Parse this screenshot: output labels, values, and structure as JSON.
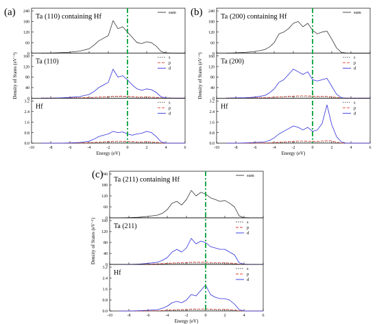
{
  "figure": {
    "panels": [
      {
        "letter": "(a)",
        "xlabel": "Energy (eV)",
        "ylabel": "Density of States (eV⁻¹)",
        "x_ticks": [
          "-10",
          "-8",
          "-6",
          "-4",
          "-2",
          "0",
          "2",
          "4",
          "6"
        ],
        "subplots": [
          {
            "title": "Ta (110) containing Hf",
            "legend": [
              "sum"
            ],
            "y_ticks": [
              "0",
              "60",
              "120",
              "180",
              "240"
            ]
          },
          {
            "title": "Ta (110)",
            "legend": [
              "s",
              "p",
              "d"
            ],
            "y_ticks": [
              "0",
              "40",
              "80",
              "120",
              "160"
            ]
          },
          {
            "title": "Hf",
            "legend": [
              "s",
              "p",
              "d"
            ],
            "y_ticks": [
              "0.0",
              "0.8",
              "1.6",
              "2.4",
              "3.2"
            ]
          }
        ]
      },
      {
        "letter": "(b)",
        "xlabel": "Energy (eV)",
        "ylabel": "Density of States (eV⁻¹)",
        "x_ticks": [
          "-10",
          "-8",
          "-6",
          "-4",
          "-2",
          "0",
          "2",
          "4",
          "6"
        ],
        "subplots": [
          {
            "title": "Ta (200) containing Hf",
            "legend": [
              "sum"
            ],
            "y_ticks": [
              "0",
              "60",
              "120",
              "180",
              "240"
            ]
          },
          {
            "title": "Ta (200)",
            "legend": [
              "s",
              "p",
              "d"
            ],
            "y_ticks": [
              "0",
              "40",
              "80",
              "120",
              "160"
            ]
          },
          {
            "title": "Hf",
            "legend": [
              "s",
              "p",
              "d"
            ],
            "y_ticks": [
              "0.0",
              "0.8",
              "1.6",
              "2.4",
              "3.2"
            ]
          }
        ]
      },
      {
        "letter": "(c)",
        "xlabel": "Energy (eV)",
        "ylabel": "Density of States (eV⁻¹)",
        "x_ticks": [
          "-10",
          "-8",
          "-6",
          "-4",
          "-2",
          "0",
          "2",
          "4",
          "6"
        ],
        "subplots": [
          {
            "title": "Ta (211) containing Hf",
            "legend": [
              "sum"
            ],
            "y_ticks": [
              "0",
              "60",
              "120",
              "180",
              "240"
            ]
          },
          {
            "title": "Ta (211)",
            "legend": [
              "s",
              "p",
              "d"
            ],
            "y_ticks": [
              "0",
              "40",
              "80",
              "120",
              "160"
            ]
          },
          {
            "title": "Hf",
            "legend": [
              "s",
              "p",
              "d"
            ],
            "y_ticks": [
              "0.0",
              "0.8",
              "1.6",
              "2.4",
              "3.2"
            ]
          }
        ]
      }
    ]
  },
  "colors": {
    "sum": "#333333",
    "s": "#444444",
    "p": "#e03a2a",
    "d": "#2b2bdc",
    "fermi": "#1aa84a"
  },
  "chart_data": [
    {
      "panel": "(a)",
      "type": "line",
      "xlim": [
        -10,
        6
      ],
      "fermi_level": 0,
      "x": [
        -9,
        -8,
        -7,
        -6,
        -5,
        -4.5,
        -4,
        -3.5,
        -3,
        -2.5,
        -2,
        -1.5,
        -1,
        -0.5,
        0,
        0.5,
        1,
        1.5,
        2,
        2.5,
        3,
        3.5,
        4,
        5,
        6
      ],
      "subplots": [
        {
          "title": "Ta (110) containing Hf",
          "ylim": [
            0,
            240
          ],
          "series": [
            {
              "name": "sum",
              "values": [
                0,
                1,
                3,
                6,
                12,
                18,
                25,
                45,
                70,
                85,
                100,
                185,
                140,
                150,
                120,
                90,
                60,
                55,
                65,
                60,
                40,
                10,
                2,
                0,
                0
              ]
            }
          ]
        },
        {
          "title": "Ta (110)",
          "ylim": [
            0,
            160
          ],
          "series": [
            {
              "name": "s",
              "values": [
                0,
                0,
                1,
                1,
                2,
                2,
                3,
                3,
                4,
                4,
                4,
                5,
                5,
                5,
                4,
                4,
                3,
                3,
                3,
                3,
                2,
                1,
                0,
                0,
                0
              ]
            },
            {
              "name": "p",
              "values": [
                0,
                0,
                1,
                1,
                1,
                2,
                2,
                3,
                4,
                5,
                6,
                7,
                8,
                8,
                7,
                6,
                5,
                5,
                5,
                4,
                3,
                1,
                0,
                0,
                0
              ]
            },
            {
              "name": "d",
              "values": [
                0,
                0,
                1,
                3,
                6,
                10,
                14,
                25,
                40,
                50,
                60,
                110,
                80,
                85,
                70,
                50,
                35,
                30,
                35,
                32,
                22,
                5,
                1,
                0,
                0
              ]
            }
          ]
        },
        {
          "title": "Hf",
          "ylim": [
            0,
            3.2
          ],
          "series": [
            {
              "name": "s",
              "values": [
                0,
                0,
                0,
                0,
                0.01,
                0.02,
                0.03,
                0.04,
                0.05,
                0.06,
                0.07,
                0.08,
                0.08,
                0.07,
                0.07,
                0.06,
                0.05,
                0.05,
                0.05,
                0.04,
                0.03,
                0.01,
                0,
                0,
                0
              ]
            },
            {
              "name": "p",
              "values": [
                0,
                0,
                0,
                0.01,
                0.02,
                0.03,
                0.04,
                0.06,
                0.08,
                0.1,
                0.12,
                0.14,
                0.15,
                0.14,
                0.13,
                0.12,
                0.1,
                0.1,
                0.12,
                0.1,
                0.07,
                0.02,
                0,
                0,
                0
              ]
            },
            {
              "name": "d",
              "values": [
                0,
                0,
                0,
                0.02,
                0.05,
                0.1,
                0.15,
                0.3,
                0.5,
                0.6,
                0.7,
                0.9,
                0.8,
                0.85,
                0.7,
                0.6,
                0.7,
                0.75,
                0.9,
                0.8,
                0.5,
                0.1,
                0,
                0,
                0
              ]
            }
          ]
        }
      ]
    },
    {
      "panel": "(b)",
      "type": "line",
      "xlim": [
        -10,
        6
      ],
      "fermi_level": 0,
      "x": [
        -9,
        -8,
        -7,
        -6,
        -5,
        -4.5,
        -4,
        -3.5,
        -3,
        -2.5,
        -2,
        -1.5,
        -1,
        -0.5,
        0,
        0.5,
        1,
        1.5,
        2,
        2.5,
        3,
        3.5,
        4,
        5,
        6
      ],
      "subplots": [
        {
          "title": "Ta (200) containing Hf",
          "ylim": [
            0,
            240
          ],
          "series": [
            {
              "name": "sum",
              "values": [
                0,
                2,
                5,
                10,
                20,
                35,
                60,
                110,
                120,
                140,
                170,
                180,
                150,
                170,
                130,
                110,
                120,
                125,
                80,
                30,
                5,
                1,
                0,
                0,
                0
              ]
            }
          ]
        },
        {
          "title": "Ta (200)",
          "ylim": [
            0,
            160
          ],
          "series": [
            {
              "name": "s",
              "values": [
                0,
                0,
                1,
                1,
                2,
                2,
                3,
                4,
                4,
                5,
                5,
                5,
                5,
                5,
                4,
                4,
                4,
                4,
                3,
                2,
                1,
                0,
                0,
                0,
                0
              ]
            },
            {
              "name": "p",
              "values": [
                0,
                0,
                1,
                1,
                2,
                3,
                4,
                5,
                6,
                7,
                8,
                9,
                9,
                9,
                8,
                7,
                7,
                7,
                5,
                3,
                1,
                0,
                0,
                0,
                0
              ]
            },
            {
              "name": "d",
              "values": [
                0,
                1,
                2,
                4,
                10,
                20,
                35,
                60,
                70,
                90,
                110,
                100,
                90,
                100,
                70,
                65,
                70,
                75,
                45,
                15,
                2,
                0,
                0,
                0,
                0
              ]
            }
          ]
        },
        {
          "title": "Hf",
          "ylim": [
            0,
            3.2
          ],
          "series": [
            {
              "name": "s",
              "values": [
                0,
                0,
                0,
                0,
                0.01,
                0.02,
                0.03,
                0.04,
                0.05,
                0.06,
                0.07,
                0.08,
                0.08,
                0.08,
                0.07,
                0.07,
                0.08,
                0.1,
                0.08,
                0.04,
                0.01,
                0,
                0,
                0,
                0
              ]
            },
            {
              "name": "p",
              "values": [
                0,
                0,
                0,
                0.01,
                0.02,
                0.03,
                0.05,
                0.08,
                0.1,
                0.12,
                0.14,
                0.16,
                0.16,
                0.15,
                0.14,
                0.14,
                0.16,
                0.2,
                0.16,
                0.08,
                0.02,
                0,
                0,
                0,
                0
              ]
            },
            {
              "name": "d",
              "values": [
                0,
                0,
                0.02,
                0.05,
                0.1,
                0.2,
                0.4,
                0.7,
                0.9,
                1.1,
                1.3,
                1.2,
                1.0,
                1.2,
                0.9,
                1.0,
                1.5,
                2.9,
                1.4,
                0.5,
                0.1,
                0,
                0,
                0,
                0
              ]
            }
          ]
        }
      ]
    },
    {
      "panel": "(c)",
      "type": "line",
      "xlim": [
        -10,
        6
      ],
      "fermi_level": 0,
      "x": [
        -9,
        -8,
        -7,
        -6,
        -5,
        -4.5,
        -4,
        -3.5,
        -3,
        -2.5,
        -2,
        -1.5,
        -1,
        -0.5,
        0,
        0.5,
        1,
        1.5,
        2,
        2.5,
        3,
        3.5,
        4,
        5,
        6
      ],
      "subplots": [
        {
          "title": "Ta (211) containing Hf",
          "ylim": [
            0,
            240
          ],
          "series": [
            {
              "name": "sum",
              "values": [
                0,
                1,
                3,
                8,
                15,
                25,
                45,
                80,
                90,
                70,
                100,
                150,
                120,
                140,
                130,
                110,
                100,
                90,
                95,
                80,
                60,
                10,
                1,
                0,
                0
              ]
            }
          ]
        },
        {
          "title": "Ta (211)",
          "ylim": [
            0,
            160
          ],
          "series": [
            {
              "name": "s",
              "values": [
                0,
                0,
                1,
                1,
                2,
                2,
                3,
                4,
                4,
                4,
                5,
                5,
                5,
                5,
                4,
                4,
                4,
                4,
                3,
                3,
                2,
                1,
                0,
                0,
                0
              ]
            },
            {
              "name": "p",
              "values": [
                0,
                0,
                1,
                1,
                2,
                3,
                4,
                5,
                6,
                6,
                7,
                8,
                8,
                8,
                8,
                7,
                6,
                6,
                6,
                5,
                4,
                1,
                0,
                0,
                0
              ]
            },
            {
              "name": "d",
              "values": [
                0,
                0,
                1,
                4,
                8,
                15,
                25,
                45,
                55,
                45,
                60,
                95,
                75,
                85,
                80,
                65,
                60,
                55,
                55,
                45,
                35,
                6,
                1,
                0,
                0
              ]
            }
          ]
        },
        {
          "title": "Hf",
          "ylim": [
            0,
            3.2
          ],
          "series": [
            {
              "name": "s",
              "values": [
                0,
                0,
                0,
                0,
                0.01,
                0.02,
                0.03,
                0.04,
                0.05,
                0.05,
                0.06,
                0.07,
                0.07,
                0.08,
                0.08,
                0.07,
                0.06,
                0.06,
                0.06,
                0.05,
                0.04,
                0.01,
                0,
                0,
                0
              ]
            },
            {
              "name": "p",
              "values": [
                0,
                0,
                0,
                0.01,
                0.02,
                0.04,
                0.06,
                0.08,
                0.1,
                0.1,
                0.12,
                0.14,
                0.14,
                0.15,
                0.16,
                0.14,
                0.12,
                0.12,
                0.12,
                0.1,
                0.08,
                0.02,
                0,
                0,
                0
              ]
            },
            {
              "name": "d",
              "values": [
                0,
                0,
                0.02,
                0.05,
                0.1,
                0.2,
                0.35,
                0.6,
                0.7,
                0.6,
                0.8,
                1.2,
                1.1,
                1.5,
                1.9,
                1.2,
                1.0,
                0.9,
                0.9,
                0.8,
                0.5,
                0.1,
                0,
                0,
                0
              ]
            }
          ]
        }
      ]
    }
  ]
}
